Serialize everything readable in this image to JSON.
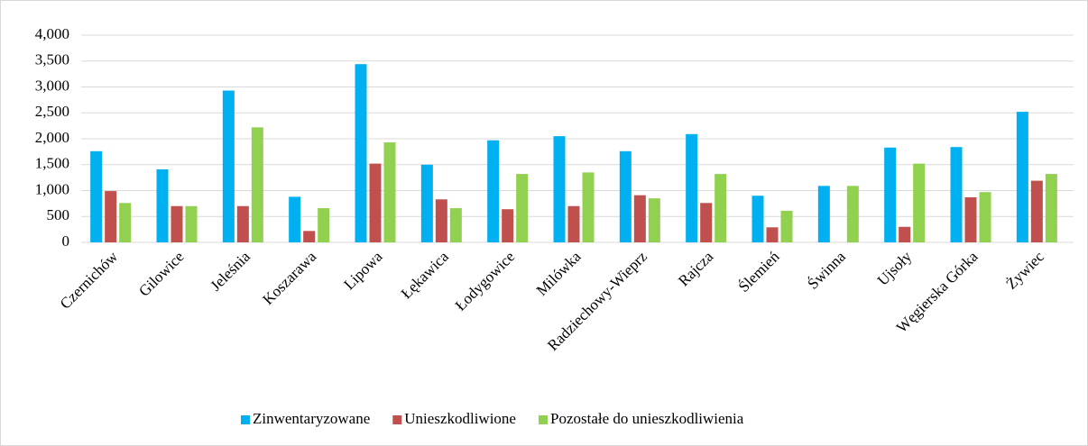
{
  "chart_data": {
    "type": "bar",
    "categories": [
      "Czernichów",
      "Gilowice",
      "Jeleśnia",
      "Koszarawa",
      "Lipowa",
      "Łękawica",
      "Łodygowice",
      "Milówka",
      "Radziechowy-Wieprz",
      "Rajcza",
      "Ślemień",
      "Świnna",
      "Ujsoły",
      "Węgierska Górka",
      "Żywiec"
    ],
    "series": [
      {
        "name": "Zinwentaryzowane",
        "color": "#00b0f0",
        "values": [
          1760,
          1410,
          2930,
          880,
          3440,
          1500,
          1970,
          2050,
          1760,
          2090,
          900,
          1090,
          1830,
          1840,
          2520
        ]
      },
      {
        "name": "Unieszkodliwione",
        "color": "#c0504d",
        "values": [
          990,
          700,
          700,
          220,
          1520,
          830,
          640,
          700,
          910,
          760,
          290,
          0,
          300,
          870,
          1190
        ]
      },
      {
        "name": "Pozostałe do unieszkodliwienia",
        "color": "#92d050",
        "values": [
          760,
          700,
          2220,
          660,
          1930,
          660,
          1320,
          1350,
          850,
          1320,
          610,
          1090,
          1520,
          970,
          1320
        ]
      }
    ],
    "ylim": [
      0,
      4000
    ],
    "yticks": [
      0,
      500,
      {
        "value": 1000,
        "label": "1,000"
      },
      {
        "value": 1500,
        "label": "1,500"
      },
      {
        "value": 2000,
        "label": "2,000"
      },
      {
        "value": 2500,
        "label": "2,500"
      },
      {
        "value": 3000,
        "label": "3,000"
      },
      {
        "value": 3500,
        "label": "3,500"
      },
      {
        "value": 4000,
        "label": "4,000"
      }
    ],
    "grid": true,
    "legend": "bottom"
  }
}
